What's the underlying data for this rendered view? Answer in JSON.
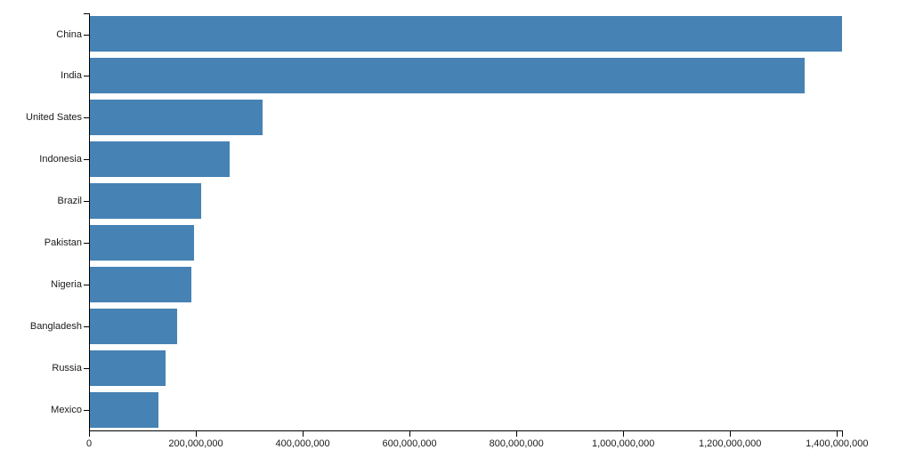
{
  "chart_data": {
    "type": "bar",
    "orientation": "horizontal",
    "title": "",
    "xlabel": "",
    "ylabel": "",
    "categories": [
      "China",
      "India",
      "United Sates",
      "Indonesia",
      "Brazil",
      "Pakistan",
      "Nigeria",
      "Bangladesh",
      "Russia",
      "Mexico"
    ],
    "values": [
      1409517397,
      1339180127,
      324459463,
      263991379,
      209288278,
      197015955,
      190886311,
      164669751,
      143989754,
      129163276
    ],
    "xlim": [
      0,
      1409517397
    ],
    "x_ticks": [
      0,
      200000000,
      400000000,
      600000000,
      800000000,
      1000000000,
      1200000000,
      1400000000
    ],
    "x_tick_labels": [
      "0",
      "200,000,000",
      "400,000,000",
      "600,000,000",
      "800,000,000",
      "1,000,000,000",
      "1,200,000,000",
      "1,400,000,000"
    ],
    "grid": false,
    "legend": null,
    "bar_color": "#4682b4",
    "axis_color": "#000000",
    "text_color": "#1a1a1a"
  }
}
